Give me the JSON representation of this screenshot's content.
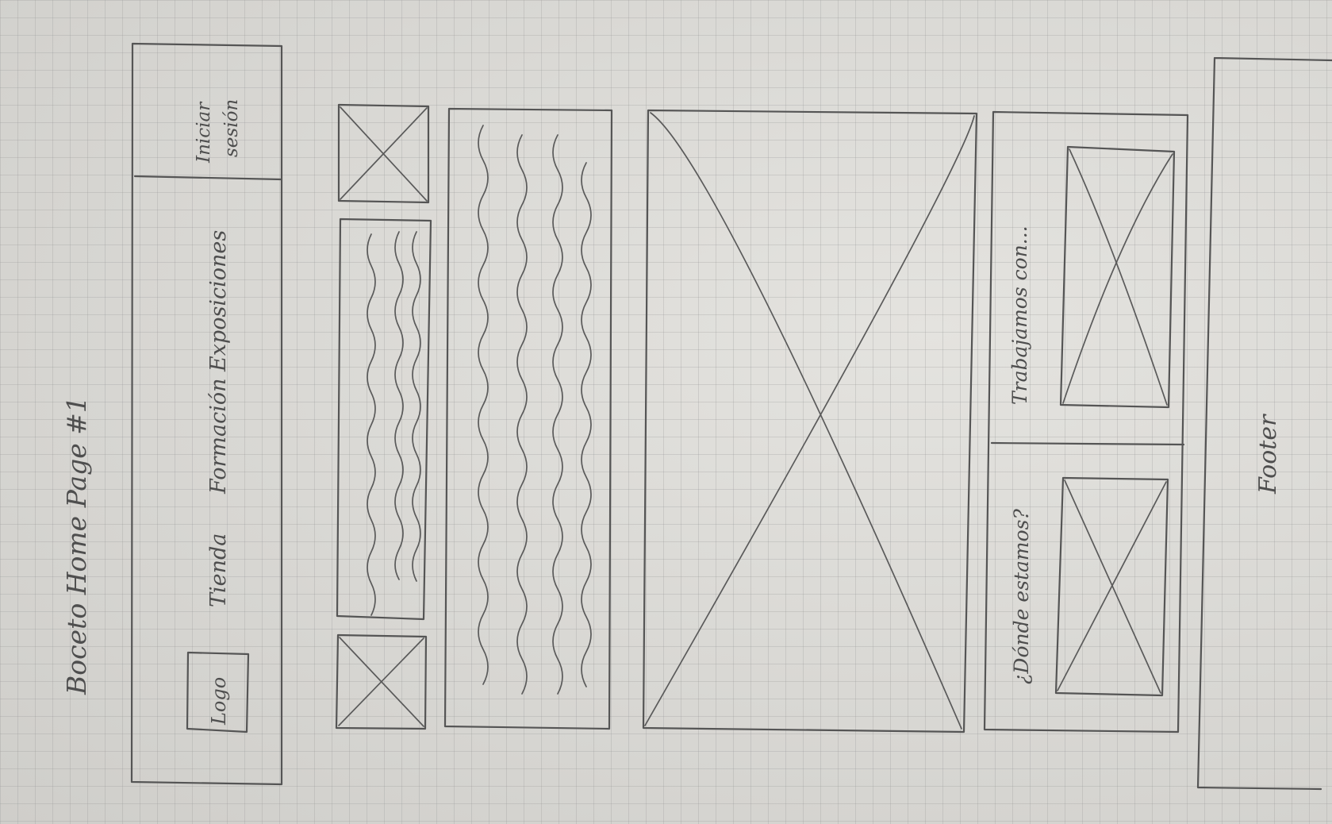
{
  "title": "Boceto Home Page #1",
  "header": {
    "logo_label": "Logo",
    "nav": [
      "Tienda",
      "Formación",
      "Exposiciones"
    ],
    "login_label": "Iniciar sesión"
  },
  "sections": {
    "where_label": "¿Dónde estamos?",
    "partners_label": "Trabajamos con..."
  },
  "footer_label": "Footer"
}
